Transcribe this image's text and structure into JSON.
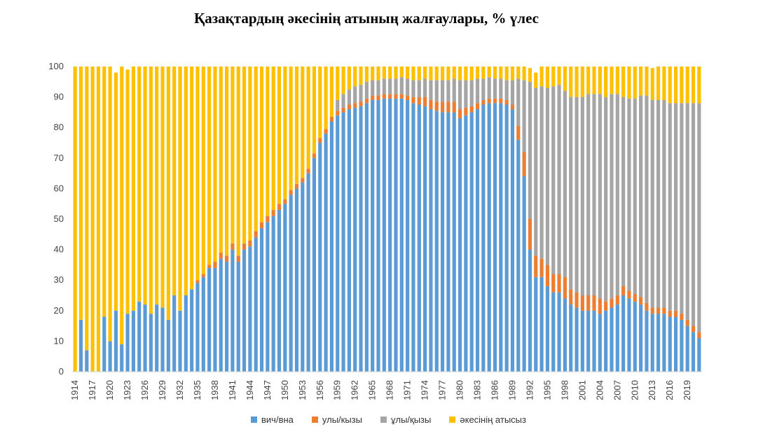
{
  "title": "Қазақтардың әкесінің атының жалғаулары, % үлес",
  "colors": {
    "vich": "#5B9BD5",
    "uly_orange": "#ED7D31",
    "uly_gray": "#A5A5A5",
    "none": "#FFC000"
  },
  "chart_data": {
    "type": "bar",
    "stacked": true,
    "title": "Қазақтардың әкесінің атының жалғаулары, % үлес",
    "ylim": [
      0,
      100
    ],
    "yticks": [
      0,
      10,
      20,
      30,
      40,
      50,
      60,
      70,
      80,
      90,
      100
    ],
    "grid": false,
    "legend_position": "bottom",
    "x": [
      1914,
      1915,
      1916,
      1917,
      1918,
      1919,
      1920,
      1921,
      1922,
      1923,
      1924,
      1925,
      1926,
      1927,
      1928,
      1929,
      1930,
      1931,
      1932,
      1933,
      1934,
      1935,
      1936,
      1937,
      1938,
      1939,
      1940,
      1941,
      1942,
      1943,
      1944,
      1945,
      1946,
      1947,
      1948,
      1949,
      1950,
      1951,
      1952,
      1953,
      1954,
      1955,
      1956,
      1957,
      1958,
      1959,
      1960,
      1961,
      1962,
      1963,
      1964,
      1965,
      1966,
      1967,
      1968,
      1969,
      1970,
      1971,
      1972,
      1973,
      1974,
      1975,
      1976,
      1977,
      1978,
      1979,
      1980,
      1981,
      1982,
      1983,
      1984,
      1985,
      1986,
      1987,
      1988,
      1989,
      1990,
      1991,
      1992,
      1993,
      1994,
      1995,
      1996,
      1997,
      1998,
      1999,
      2000,
      2001,
      2002,
      2003,
      2004,
      2005,
      2006,
      2007,
      2008,
      2009,
      2010,
      2011,
      2012,
      2013,
      2014,
      2015,
      2016,
      2017,
      2018,
      2019,
      2020,
      2021
    ],
    "xticklabels": [
      "1914",
      "1917",
      "1920",
      "1923",
      "1926",
      "1929",
      "1932",
      "1935",
      "1938",
      "1941",
      "1944",
      "1947",
      "1950",
      "1953",
      "1956",
      "1959",
      "1962",
      "1965",
      "1968",
      "1971",
      "1974",
      "1977",
      "1980",
      "1983",
      "1986",
      "1989",
      "1992",
      "1995",
      "1998",
      "2001",
      "2004",
      "2007",
      "2010",
      "2013",
      "2016",
      "2019"
    ],
    "series": [
      {
        "name": "вич/вна",
        "color": "#5B9BD5",
        "values": [
          0,
          17,
          7,
          0,
          0,
          18,
          10,
          20,
          9,
          19,
          20,
          23,
          22,
          19,
          22,
          21,
          17,
          25,
          20,
          25,
          27,
          29,
          31,
          34,
          34,
          37,
          36,
          40,
          36,
          40,
          41,
          44,
          47,
          49,
          51,
          53,
          55,
          58,
          60,
          62,
          65,
          70,
          75,
          78,
          82,
          84,
          85,
          86,
          86.5,
          87,
          88,
          89,
          89,
          89.5,
          89.5,
          89.5,
          89.5,
          89,
          88,
          87.5,
          87,
          86,
          85.5,
          85,
          85,
          85,
          83,
          84,
          85,
          86,
          87.5,
          88,
          88,
          88,
          87.5,
          86,
          76,
          64,
          40,
          31,
          31,
          28,
          26,
          26,
          24,
          22,
          21,
          20,
          20,
          20,
          19,
          20,
          21,
          22,
          25,
          24,
          23,
          22,
          20,
          19,
          19,
          19,
          18,
          18,
          17,
          15,
          13,
          11
        ]
      },
      {
        "name": "улы/кызы",
        "color": "#ED7D31",
        "values": [
          0,
          0,
          0,
          0,
          0,
          0,
          0,
          0,
          0,
          0,
          0,
          0,
          0,
          0,
          0,
          0,
          0,
          0,
          0,
          0,
          0,
          1,
          1,
          1,
          2,
          2,
          2,
          2,
          2,
          2,
          2,
          2,
          2,
          2,
          2,
          2,
          1.5,
          1.5,
          1.5,
          1.5,
          1.5,
          1.5,
          1.5,
          1.5,
          1.5,
          1.5,
          1.5,
          1.5,
          1.5,
          1.5,
          1.5,
          1.5,
          1.5,
          1.5,
          1.5,
          1.5,
          1.5,
          1.5,
          2,
          2.5,
          3,
          3,
          3,
          3.5,
          3.5,
          3.5,
          3,
          2.5,
          2,
          2,
          1.5,
          1.5,
          1.5,
          1.5,
          1.5,
          1.5,
          4.5,
          8,
          10,
          7,
          6,
          7,
          6,
          6,
          7,
          5,
          5,
          5,
          5,
          5,
          5,
          3,
          3,
          3,
          3,
          2.5,
          2.5,
          2.5,
          2.5,
          2,
          2,
          2,
          2,
          2,
          2,
          2,
          2,
          2
        ]
      },
      {
        "name": "ұлы/қызы",
        "color": "#A5A5A5",
        "values": [
          0,
          0,
          0,
          0,
          0,
          0,
          0,
          0,
          0,
          0,
          0,
          0,
          0,
          0,
          0,
          0,
          0,
          0,
          0,
          0,
          0,
          0,
          0,
          0,
          0,
          0,
          0,
          0,
          0,
          0,
          0,
          0,
          0,
          0,
          0,
          0,
          0,
          0,
          0,
          0,
          0,
          0,
          0,
          0,
          0,
          3.5,
          4.5,
          5,
          5.5,
          5.5,
          5.5,
          5,
          5,
          5,
          5,
          5,
          5.5,
          5.5,
          5.5,
          5.5,
          6,
          6.5,
          7,
          7,
          7,
          7.5,
          9.5,
          9,
          8.5,
          8,
          7,
          7,
          6.5,
          6.5,
          6.5,
          8,
          15.5,
          23.5,
          45,
          55,
          56.5,
          58,
          61.5,
          62,
          61,
          63,
          64,
          65,
          66,
          66,
          67,
          67,
          67,
          66,
          62,
          63,
          64,
          66,
          68,
          68,
          68,
          68,
          68,
          68,
          69,
          71,
          73,
          75
        ]
      },
      {
        "name": "әкесінің атысыз",
        "color": "#FFC000",
        "values": [
          100,
          83,
          93,
          100,
          100,
          82,
          90,
          78,
          91,
          80,
          80,
          77,
          78,
          81,
          78,
          79,
          83,
          75,
          80,
          75,
          73,
          70,
          68,
          65,
          64,
          61,
          62,
          58,
          62,
          58,
          57,
          54,
          51,
          49,
          47,
          45,
          43.5,
          40.5,
          38.5,
          36.5,
          33.5,
          28.5,
          23.5,
          20.5,
          16.5,
          11,
          9,
          7.5,
          6.5,
          6,
          5,
          4.5,
          4.5,
          4,
          4,
          4,
          3.5,
          4,
          4.5,
          4.5,
          4,
          4.5,
          4.5,
          4.5,
          4.5,
          4,
          4.5,
          4.5,
          4.5,
          4,
          4,
          3.5,
          4,
          4,
          4.5,
          4.5,
          4,
          4.5,
          4.5,
          5,
          6.5,
          7,
          6.5,
          6,
          8,
          10,
          10,
          10,
          9,
          9,
          9,
          10,
          9,
          9,
          10,
          10.5,
          10.5,
          9.5,
          9.5,
          10.5,
          11,
          11,
          12,
          12,
          12,
          12,
          12,
          12
        ]
      }
    ]
  }
}
